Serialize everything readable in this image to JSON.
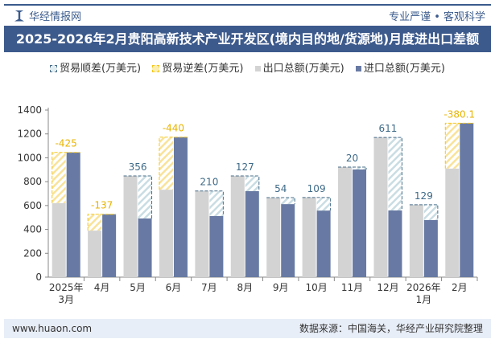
{
  "header": {
    "brand": "华经情报网",
    "slogan": "专业严谨 • 客观科学"
  },
  "title": "2025-2026年2月贵阳高新技术产业开发区(境内目的地/货源地)月度进出口差额",
  "footer": {
    "website": "www.huaon.com",
    "source": "数据来源：中国海关，华经产业研究院整理"
  },
  "colors": {
    "surplus": "#4a6f8a",
    "deficit": "#f5c518",
    "export": "#d3d3d3",
    "import": "#687aa3"
  },
  "chart_data": {
    "type": "bar",
    "legend": [
      "贸易顺差(万美元)",
      "贸易逆差(万美元)",
      "出口总额(万美元)",
      "进口总额(万美元)"
    ],
    "legend_position": "top",
    "categories": [
      "2025年\n3月",
      "4月",
      "5月",
      "6月",
      "7月",
      "8月",
      "9月",
      "10月",
      "11月",
      "12月",
      "2026年\n1月",
      "2月"
    ],
    "export": [
      620,
      390,
      848,
      733,
      722,
      848,
      666,
      667,
      922,
      1170,
      607,
      910
    ],
    "import": [
      1045,
      527,
      492,
      1173,
      512,
      721,
      612,
      558,
      902,
      559,
      478,
      1290.1
    ],
    "balance_labels": [
      "-425",
      "-137",
      "356",
      "-440",
      "210",
      "127",
      "54",
      "109",
      "20",
      "611",
      "129",
      "-380.1"
    ],
    "ylim": [
      0,
      1400
    ],
    "yticks": [
      0,
      200,
      400,
      600,
      800,
      1000,
      1200,
      1400
    ],
    "grid": false
  }
}
